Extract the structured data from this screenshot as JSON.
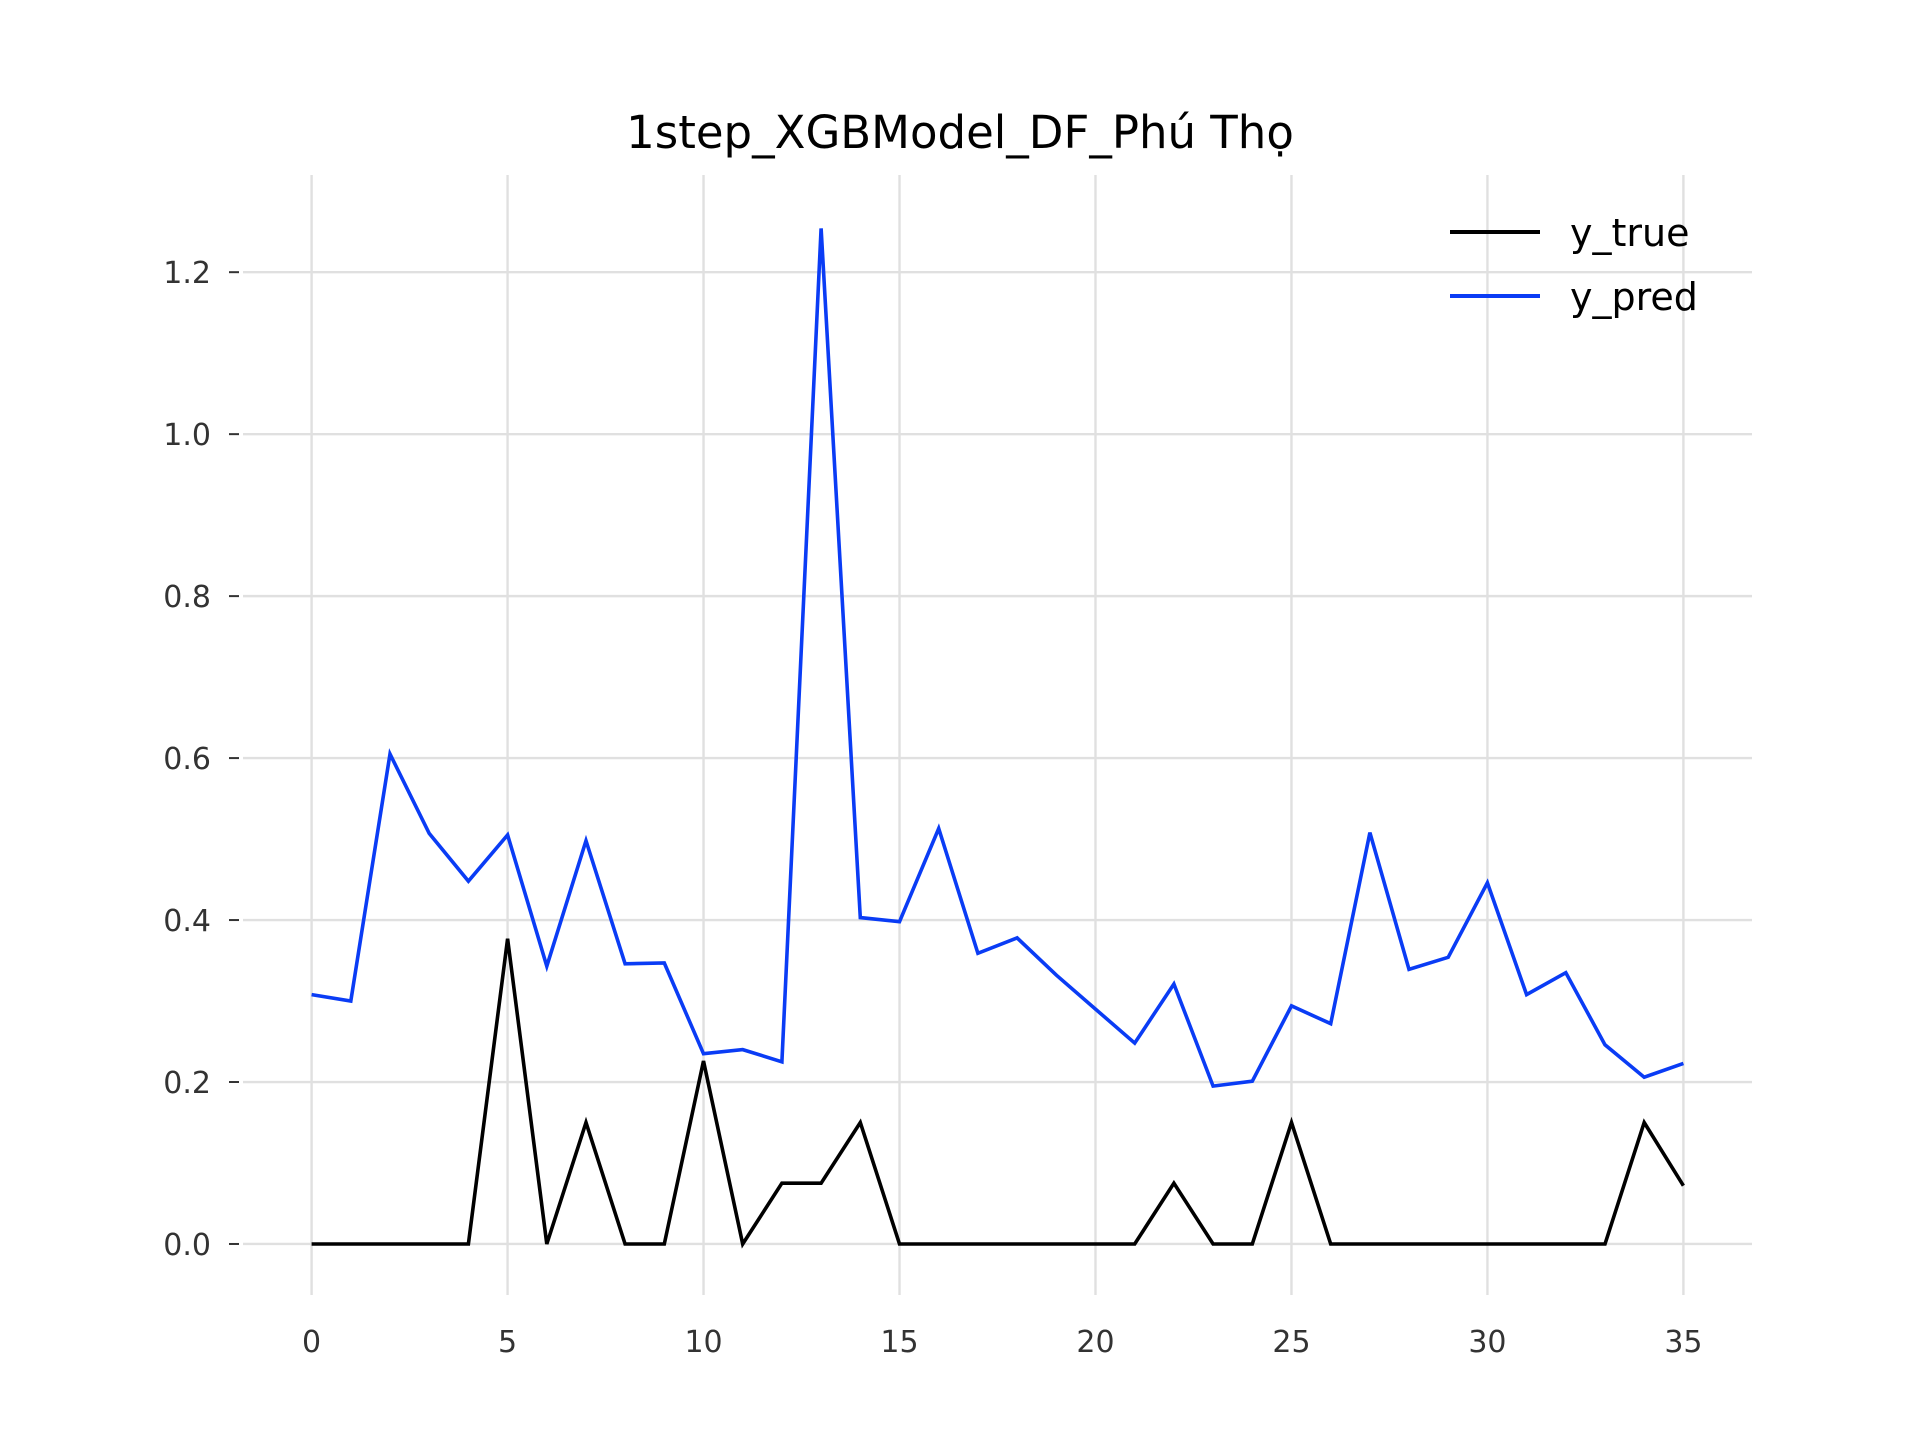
{
  "chart_data": {
    "type": "line",
    "title": "1step_XGBModel_DF_Phú Thọ",
    "xlabel": "",
    "ylabel": "",
    "xlim": [
      -1.75,
      36.75
    ],
    "ylim": [
      -0.063,
      1.32
    ],
    "x_ticks": [
      0,
      5,
      10,
      15,
      20,
      25,
      30,
      35
    ],
    "x_tick_labels": [
      "0",
      "5",
      "10",
      "15",
      "20",
      "25",
      "30",
      "35"
    ],
    "y_ticks": [
      0.0,
      0.2,
      0.4,
      0.6,
      0.8,
      1.0,
      1.2
    ],
    "y_tick_labels": [
      "0.0",
      "0.2",
      "0.4",
      "0.6",
      "0.8",
      "1.0",
      "1.2"
    ],
    "grid": true,
    "legend_position": "top-right",
    "x": [
      0,
      1,
      2,
      3,
      4,
      5,
      6,
      7,
      8,
      9,
      10,
      11,
      12,
      13,
      14,
      15,
      16,
      17,
      18,
      19,
      20,
      21,
      22,
      23,
      24,
      25,
      26,
      27,
      28,
      29,
      30,
      31,
      32,
      33,
      34,
      35
    ],
    "series": [
      {
        "name": "y_true",
        "color": "#000000",
        "values": [
          0,
          0,
          0,
          0,
          0,
          0.377,
          0,
          0.15,
          0,
          0,
          0.226,
          0,
          0.075,
          0.075,
          0.15,
          0,
          0,
          0,
          0,
          0,
          0,
          0,
          0.075,
          0,
          0,
          0.15,
          0,
          0,
          0,
          0,
          0,
          0,
          0,
          0,
          0.15,
          0.072
        ]
      },
      {
        "name": "y_pred",
        "color": "#0a3cf5",
        "values": [
          0.308,
          0.3,
          0.605,
          0.507,
          0.448,
          0.505,
          0.343,
          0.498,
          0.346,
          0.347,
          0.235,
          0.24,
          0.225,
          1.254,
          0.403,
          0.398,
          0.513,
          0.359,
          0.378,
          0.332,
          0.29,
          0.248,
          0.321,
          0.195,
          0.201,
          0.294,
          0.272,
          0.508,
          0.339,
          0.354,
          0.446,
          0.308,
          0.335,
          0.246,
          0.206,
          0.223
        ]
      }
    ]
  }
}
